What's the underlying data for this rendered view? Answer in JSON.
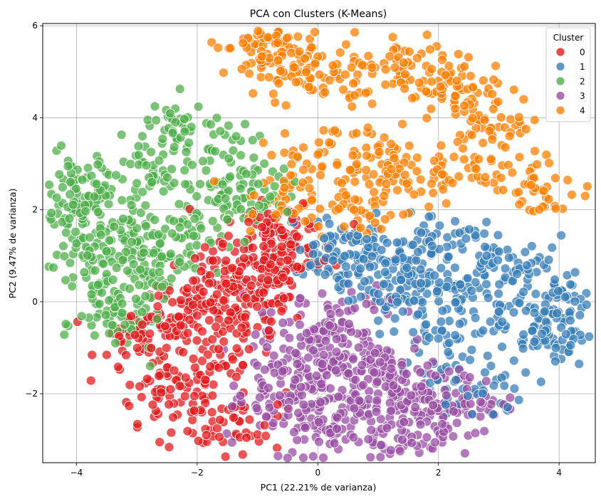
{
  "chart_data": {
    "type": "scatter",
    "title": "PCA con Clusters (K-Means)",
    "xlabel": "PC1 (22.21% de varianza)",
    "ylabel": "PC2 (9.47% de varianza)",
    "xlim": [
      -4.56,
      4.6
    ],
    "ylim": [
      -3.5,
      6.05
    ],
    "x_ticks": [
      {
        "value": -4,
        "label": "−4"
      },
      {
        "value": -2,
        "label": "−2"
      },
      {
        "value": 0,
        "label": "0"
      },
      {
        "value": 2,
        "label": "2"
      },
      {
        "value": 4,
        "label": "4"
      }
    ],
    "y_ticks": [
      {
        "value": -2,
        "label": "−2"
      },
      {
        "value": 0,
        "label": "0"
      },
      {
        "value": 2,
        "label": "2"
      },
      {
        "value": 4,
        "label": "4"
      },
      {
        "value": 6,
        "label": "6"
      }
    ],
    "grid": true,
    "legend": {
      "title": "Cluster",
      "placement": "top-right"
    },
    "series": [
      {
        "name": "0",
        "color": "#e41a1c",
        "points": [
          [
            -2.5,
            -0.6
          ],
          [
            -2.0,
            -0.3
          ],
          [
            -1.5,
            0.2
          ],
          [
            -1.0,
            0.8
          ],
          [
            -0.8,
            1.6
          ],
          [
            -2.6,
            -1.9
          ],
          [
            -1.3,
            -2.6
          ],
          [
            -0.5,
            0.9
          ],
          [
            -2.1,
            -2.4
          ],
          [
            -1.7,
            -1.4
          ],
          [
            -1.2,
            -0.5
          ],
          [
            -0.9,
            0.2
          ],
          [
            -2.9,
            -0.8
          ],
          [
            -1.8,
            0.4
          ],
          [
            -0.6,
            1.4
          ]
        ]
      },
      {
        "name": "1",
        "color": "#377eb8",
        "points": [
          [
            0.2,
            1.2
          ],
          [
            0.8,
            1.0
          ],
          [
            1.5,
            0.6
          ],
          [
            2.2,
            0.3
          ],
          [
            3.0,
            -0.2
          ],
          [
            3.8,
            -0.6
          ],
          [
            4.1,
            0.1
          ],
          [
            2.6,
            -1.9
          ],
          [
            1.2,
            0.1
          ],
          [
            0.5,
            0.6
          ],
          [
            3.4,
            0.7
          ],
          [
            2.0,
            -0.8
          ],
          [
            1.8,
            1.3
          ],
          [
            3.9,
            -0.8
          ],
          [
            2.8,
            1.0
          ]
        ]
      },
      {
        "name": "2",
        "color": "#4daf4a",
        "points": [
          [
            -4.1,
            2.6
          ],
          [
            -3.9,
            1.8
          ],
          [
            -3.7,
            1.2
          ],
          [
            -3.5,
            0.6
          ],
          [
            -3.3,
            0.0
          ],
          [
            -3.2,
            -0.5
          ],
          [
            -2.8,
            2.7
          ],
          [
            -2.4,
            3.7
          ],
          [
            -1.8,
            3.3
          ],
          [
            -3.0,
            1.6
          ],
          [
            -2.6,
            0.9
          ],
          [
            -2.3,
            1.4
          ],
          [
            -1.5,
            2.1
          ],
          [
            -1.1,
            2.4
          ],
          [
            -3.8,
            2.3
          ]
        ]
      },
      {
        "name": "3",
        "color": "#984ea3",
        "points": [
          [
            -0.3,
            -0.5
          ],
          [
            0.2,
            -1.0
          ],
          [
            0.8,
            -1.3
          ],
          [
            1.4,
            -1.7
          ],
          [
            -0.8,
            -2.3
          ],
          [
            0.0,
            -2.8
          ],
          [
            1.4,
            -3.0
          ],
          [
            2.1,
            -2.2
          ],
          [
            -0.5,
            -1.5
          ],
          [
            0.5,
            -0.2
          ],
          [
            1.0,
            -2.0
          ],
          [
            1.6,
            -2.4
          ],
          [
            -0.1,
            -1.9
          ],
          [
            2.4,
            -2.1
          ],
          [
            0.3,
            -2.5
          ]
        ]
      },
      {
        "name": "4",
        "color": "#ff7f00",
        "points": [
          [
            -1.0,
            5.6
          ],
          [
            -0.8,
            5.3
          ],
          [
            -0.4,
            5.1
          ],
          [
            0.3,
            4.9
          ],
          [
            1.4,
            5.1
          ],
          [
            2.0,
            4.8
          ],
          [
            2.4,
            4.6
          ],
          [
            3.0,
            3.8
          ],
          [
            3.8,
            2.5
          ],
          [
            1.0,
            3.2
          ],
          [
            0.0,
            3.2
          ],
          [
            -0.6,
            2.3
          ],
          [
            1.5,
            2.6
          ],
          [
            2.6,
            2.9
          ],
          [
            0.6,
            2.0
          ]
        ]
      }
    ]
  }
}
